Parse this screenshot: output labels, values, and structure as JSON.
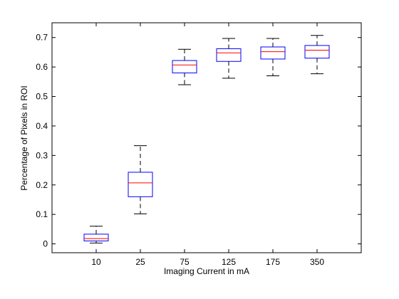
{
  "chart_data": {
    "type": "box",
    "xlabel": "Imaging Current in mA",
    "ylabel": "Percentage of Pixels in ROI",
    "ylim": [
      -0.03,
      0.75
    ],
    "yticks": [
      "0",
      "0.1",
      "0.2",
      "0.3",
      "0.4",
      "0.5",
      "0.6",
      "0.7"
    ],
    "ytick_values": [
      0,
      0.1,
      0.2,
      0.3,
      0.4,
      0.5,
      0.6,
      0.7
    ],
    "categories": [
      "10",
      "25",
      "75",
      "125",
      "175",
      "350"
    ],
    "boxes": [
      {
        "min": 0.003,
        "q1": 0.01,
        "median": 0.018,
        "q3": 0.033,
        "max": 0.06
      },
      {
        "min": 0.102,
        "q1": 0.16,
        "median": 0.207,
        "q3": 0.243,
        "max": 0.333
      },
      {
        "min": 0.54,
        "q1": 0.58,
        "median": 0.607,
        "q3": 0.622,
        "max": 0.66
      },
      {
        "min": 0.562,
        "q1": 0.619,
        "median": 0.648,
        "q3": 0.662,
        "max": 0.697
      },
      {
        "min": 0.57,
        "q1": 0.627,
        "median": 0.652,
        "q3": 0.668,
        "max": 0.697
      },
      {
        "min": 0.577,
        "q1": 0.63,
        "median": 0.657,
        "q3": 0.673,
        "max": 0.707
      }
    ],
    "colors": {
      "box": "#0000ff",
      "median": "#ff0000",
      "whisker": "#000000"
    },
    "grid": false
  }
}
